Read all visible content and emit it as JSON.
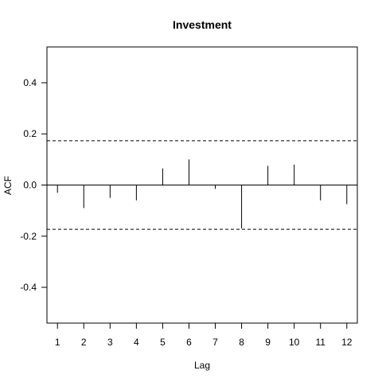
{
  "chart_data": {
    "type": "bar",
    "title": "Investment",
    "xlabel": "Lag",
    "ylabel": "ACF",
    "x": [
      1,
      2,
      3,
      4,
      5,
      6,
      7,
      8,
      9,
      10,
      11,
      12
    ],
    "values": [
      -0.03,
      -0.09,
      -0.05,
      -0.06,
      0.065,
      0.1,
      -0.015,
      -0.17,
      0.075,
      0.08,
      -0.06,
      -0.075
    ],
    "confidence_bound": 0.173,
    "xlim": [
      0.6,
      12.4
    ],
    "ylim": [
      -0.54,
      0.54
    ],
    "x_ticks": [
      "1",
      "2",
      "3",
      "4",
      "5",
      "6",
      "7",
      "8",
      "9",
      "10",
      "11",
      "12"
    ],
    "y_ticks": [
      "-0.4",
      "-0.2",
      "0.0",
      "0.2",
      "0.4"
    ],
    "y_tick_values": [
      -0.4,
      -0.2,
      0.0,
      0.2,
      0.4
    ],
    "grid": false,
    "legend": "none"
  }
}
